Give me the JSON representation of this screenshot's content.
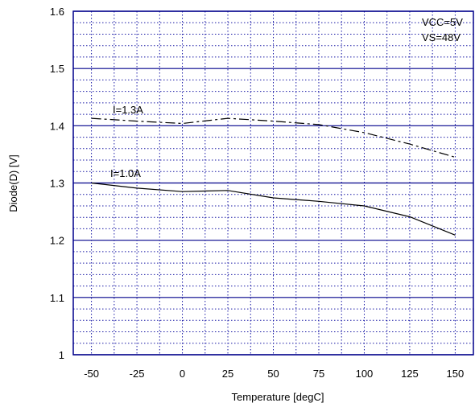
{
  "chart_data": {
    "type": "line",
    "title": "",
    "xlabel": "Temperature [degC]",
    "ylabel": "Diode(D)  [V]",
    "xlim": [
      -60,
      160
    ],
    "ylim": [
      1.0,
      1.6
    ],
    "x_ticks": [
      "-50",
      "-25",
      "0",
      "25",
      "50",
      "75",
      "100",
      "125",
      "150"
    ],
    "y_ticks": [
      "1",
      "1.1",
      "1.2",
      "1.3",
      "1.4",
      "1.5",
      "1.6"
    ],
    "grid": true,
    "legend": "none",
    "conditions": [
      "VCC=5V",
      "VS=48V"
    ],
    "series": [
      {
        "name": "I=1.3A",
        "line_style": "dash-dot",
        "color": "#000000",
        "x": [
          -50,
          -25,
          0,
          25,
          50,
          75,
          100,
          125,
          150
        ],
        "y": [
          1.413,
          1.408,
          1.404,
          1.413,
          1.408,
          1.402,
          1.388,
          1.368,
          1.345
        ]
      },
      {
        "name": "I=1.0A",
        "line_style": "solid",
        "color": "#000000",
        "x": [
          -50,
          -25,
          0,
          25,
          50,
          75,
          100,
          125,
          150
        ],
        "y": [
          1.3,
          1.291,
          1.285,
          1.287,
          1.274,
          1.268,
          1.26,
          1.241,
          1.209
        ]
      }
    ],
    "colors": {
      "major_grid": "#00008b",
      "minor_grid": "#1a1aa6",
      "frame": "#00008b"
    }
  }
}
